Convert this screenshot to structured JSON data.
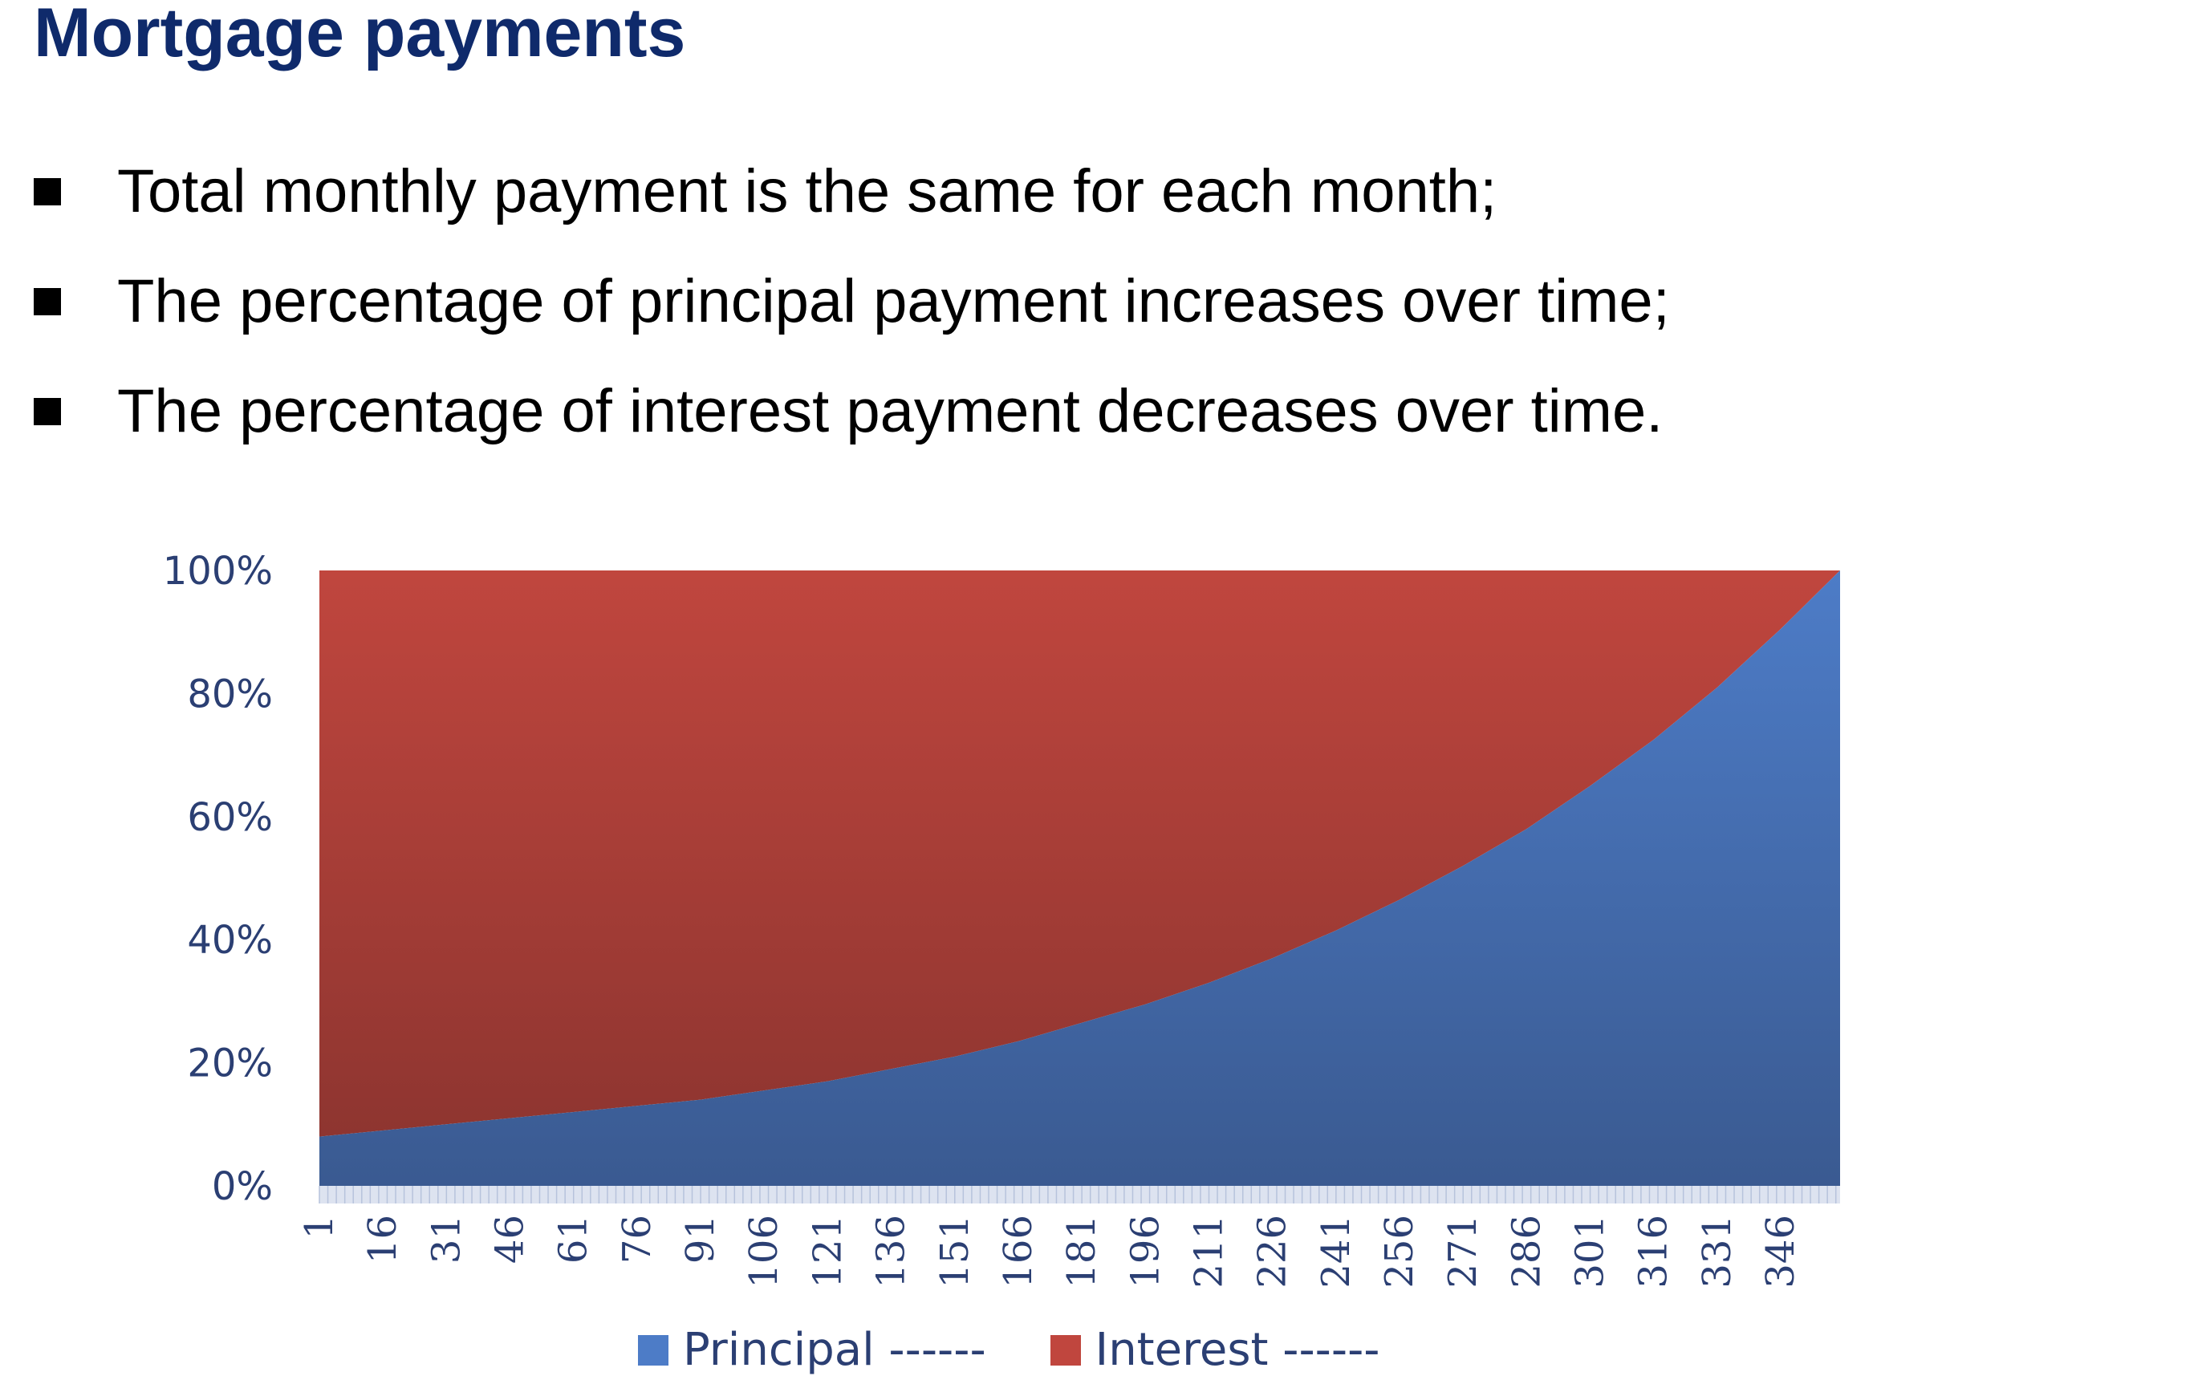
{
  "slide": {
    "title": "Mortgage payments",
    "bullets": [
      "Total monthly payment is the same for each month;",
      "The percentage of principal payment increases over time;",
      "The percentage of interest payment decreases over time."
    ]
  },
  "colors": {
    "title": "#0f2a6b",
    "principal_top": "#4d7cc7",
    "principal_bottom": "#3a5a91",
    "interest_top": "#c0463e",
    "interest_bottom": "#8e3530",
    "axis_text": "#2b3f73"
  },
  "chart_data": {
    "type": "area",
    "stacked": "percent",
    "x_tick_labels": [
      "1",
      "16",
      "31",
      "46",
      "61",
      "76",
      "91",
      "106",
      "121",
      "136",
      "151",
      "166",
      "181",
      "196",
      "211",
      "226",
      "241",
      "256",
      "271",
      "286",
      "301",
      "316",
      "331",
      "346"
    ],
    "x_range": [
      1,
      360
    ],
    "y_tick_labels": [
      "0%",
      "20%",
      "40%",
      "60%",
      "80%",
      "100%"
    ],
    "ylim": [
      0,
      100
    ],
    "grid": false,
    "legend_position": "bottom",
    "series": [
      {
        "name": "Principal ------",
        "x": [
          1,
          16,
          31,
          46,
          61,
          76,
          91,
          106,
          121,
          136,
          151,
          166,
          181,
          196,
          211,
          226,
          241,
          256,
          271,
          286,
          301,
          316,
          331,
          346,
          360
        ],
        "values": [
          8,
          9,
          10,
          11,
          12,
          13,
          14,
          15.5,
          17,
          19,
          21,
          23.5,
          26.5,
          29.5,
          33,
          37,
          41.5,
          46.5,
          52,
          58,
          65,
          72.5,
          81,
          90.5,
          100
        ]
      },
      {
        "name": "Interest ------",
        "x": [
          1,
          16,
          31,
          46,
          61,
          76,
          91,
          106,
          121,
          136,
          151,
          166,
          181,
          196,
          211,
          226,
          241,
          256,
          271,
          286,
          301,
          316,
          331,
          346,
          360
        ],
        "values": [
          92,
          91,
          90,
          89,
          88,
          87,
          86,
          84.5,
          83,
          81,
          79,
          76.5,
          73.5,
          70.5,
          67,
          63,
          58.5,
          53.5,
          48,
          42,
          35,
          27.5,
          19,
          9.5,
          0
        ]
      }
    ]
  }
}
